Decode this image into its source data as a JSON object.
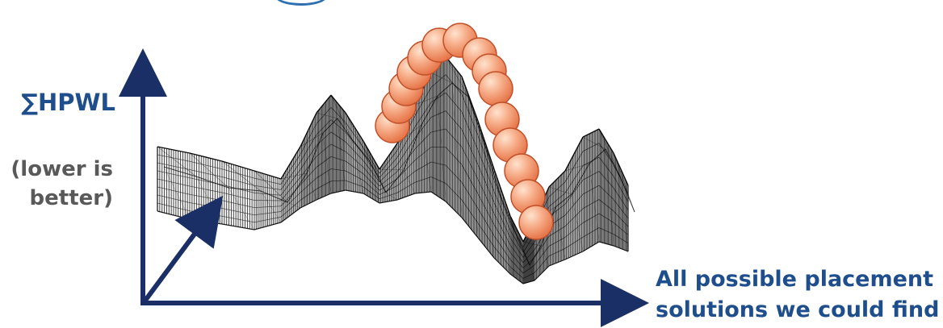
{
  "axis": {
    "y_label": "∑HPWL",
    "y_note_line1": "(lower is",
    "y_note_line2": "better)",
    "x_label_line1": "All possible placement",
    "x_label_line2": "solutions we could find"
  },
  "colors": {
    "axis": "#1a2f66",
    "label_blue": "#1f4e8c",
    "label_gray": "#595959",
    "ball_fill": "#f4a07a",
    "ball_stroke": "#c0502a",
    "mesh": "#000000"
  },
  "elements": {
    "surface": "wireframe-landscape",
    "balls": "optimizer-trajectory-balls",
    "ball_count": 14
  }
}
